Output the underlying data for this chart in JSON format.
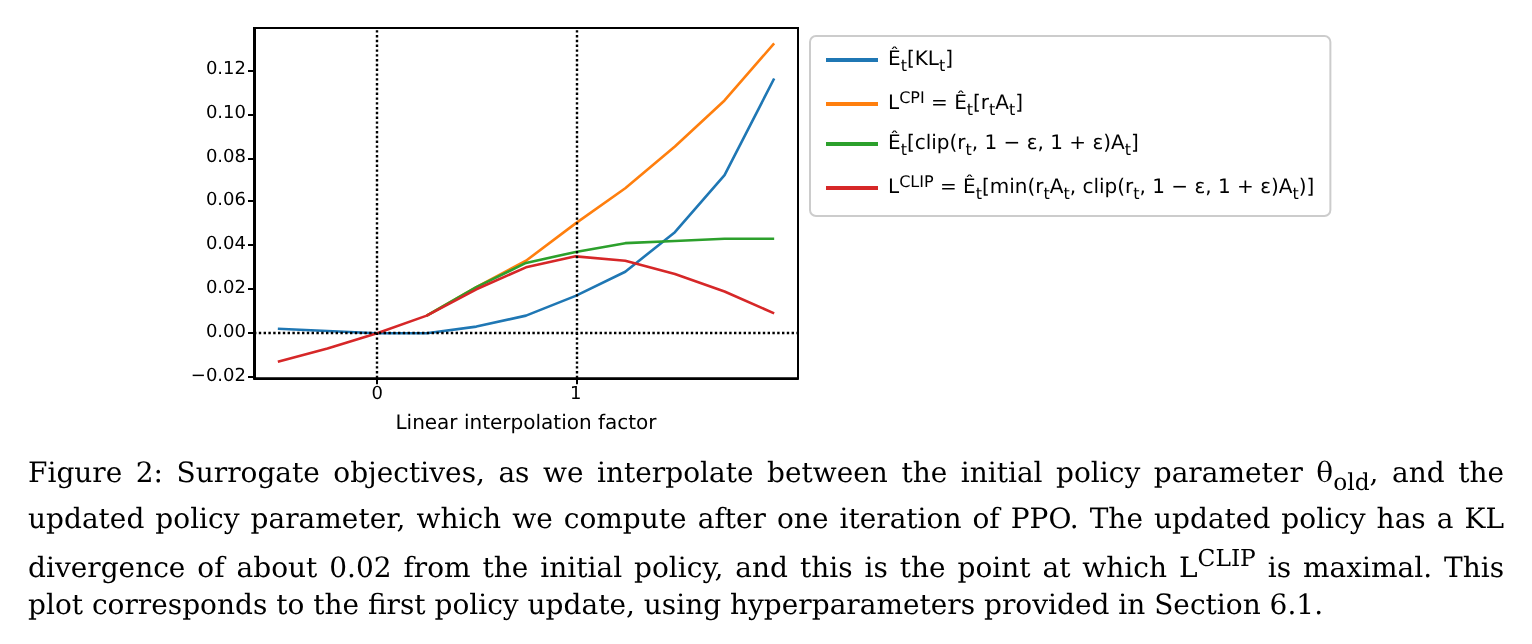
{
  "chart_data": {
    "type": "line",
    "xlabel": "Linear interpolation factor",
    "xlim": [
      -0.62,
      2.12
    ],
    "xticks": [
      0,
      1
    ],
    "ylim": [
      -0.0205,
      0.139
    ],
    "yticks": [
      {
        "value": -0.02,
        "label": "−0.02"
      },
      {
        "value": 0,
        "label": "0.00"
      },
      {
        "value": 0.02,
        "label": "0.02"
      },
      {
        "value": 0.04,
        "label": "0.04"
      },
      {
        "value": 0.06,
        "label": "0.06"
      },
      {
        "value": 0.08,
        "label": "0.08"
      },
      {
        "value": 0.1,
        "label": "0.10"
      },
      {
        "value": 0.12,
        "label": "0.12"
      }
    ],
    "legend": "top right",
    "grid": false,
    "marker": "none",
    "line_style": "solid",
    "ref_lines": [
      {
        "axis": "x",
        "value": 0,
        "color": "#000000",
        "line_style": "dotted"
      },
      {
        "axis": "x",
        "value": 1,
        "color": "#000000",
        "line_style": "dotted"
      },
      {
        "axis": "y",
        "value": 0,
        "color": "#000000",
        "line_style": "dotted"
      }
    ],
    "x": [
      -0.5,
      -0.25,
      0,
      0.25,
      0.5,
      0.75,
      1,
      1.25,
      1.5,
      1.75,
      2
    ],
    "series": [
      {
        "name": "Ê$_{t}$[KL$_{t}$]",
        "color": "#1f77b4",
        "values": [
          0.002,
          0.001,
          0,
          0,
          0.003,
          0.008,
          0.017,
          0.028,
          0.046,
          0.072,
          0.116
        ]
      },
      {
        "name": "L$^{CPI}$ = Ê$_{t}$[r$_{t}$A$_{t}$]",
        "color": "#ff7f0e",
        "values": [
          null,
          null,
          null,
          0.008,
          0.021,
          0.033,
          0.05,
          0.066,
          0.085,
          0.106,
          0.132
        ]
      },
      {
        "name": "Ê$_{t}$[clip(r$_{t}$, 1 − ε, 1 + ε)A$_{t}$]",
        "color": "#2ca02c",
        "values": [
          null,
          null,
          null,
          0.008,
          0.021,
          0.032,
          0.037,
          0.041,
          0.042,
          0.043,
          0.043
        ]
      },
      {
        "name": "L$^{CLIP}$ = Ê$_{t}$[min(r$_{t}$A$_{t}$, clip(r$_{t}$, 1 − ε, 1 + ε)A$_{t}$)]",
        "color": "#d62728",
        "values": [
          -0.013,
          -0.007,
          0,
          0.008,
          0.02,
          0.03,
          0.035,
          0.033,
          0.027,
          0.019,
          0.009
        ]
      }
    ],
    "annotations": [
      "Figure 2: Surrogate objectives, as we interpolate between the initial policy parameter θ$_{old}$, and the updated policy parameter, which we compute after one iteration of PPO. The updated policy has a KL divergence of about 0.02 from the initial policy, and this is the point at which L$^{CLIP}$ is maximal. This plot corresponds to the first policy update, using hyperparameters provided in Section 6.1."
    ]
  }
}
